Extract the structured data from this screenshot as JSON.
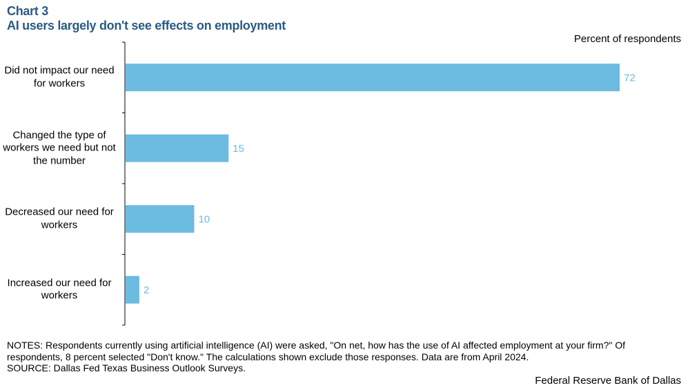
{
  "header": {
    "chart_number": "Chart 3",
    "title": "AI users largely don't see effects on employment"
  },
  "chart_data": {
    "type": "bar",
    "orientation": "horizontal",
    "unit_label": "Percent of respondents",
    "categories": [
      "Did not impact our need for workers",
      "Changed the type of workers we need but not the number",
      "Decreased our need for workers",
      "Increased our need for workers"
    ],
    "values": [
      72,
      15,
      10,
      2
    ],
    "xlim": [
      0,
      72
    ],
    "bar_color": "#6cbbe0",
    "label_color": "#6cbbe0",
    "grid": false,
    "legend": "none"
  },
  "notes": {
    "line1": "NOTES: Respondents currently using artificial intelligence (AI) were asked, \"On net, how has the use of AI affected employment at your firm?\" Of",
    "line2": "respondents, 8 percent selected \"Don't know.\" The calculations shown exclude those responses. Data are from April 2024.",
    "source": "SOURCE: Dallas Fed Texas Business Outlook Surveys."
  },
  "credit": "Federal Reserve Bank of Dallas"
}
